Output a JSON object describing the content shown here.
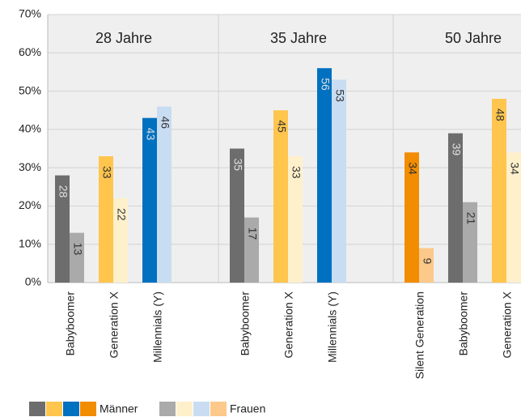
{
  "chart_data": {
    "type": "bar",
    "groups": [
      {
        "name": "28 Jahre",
        "categories": [
          "Babyboomer",
          "Generation X",
          "Millennials (Y)"
        ]
      },
      {
        "name": "35 Jahre",
        "categories": [
          "Babyboomer",
          "Generation X",
          "Millennials (Y)"
        ]
      },
      {
        "name": "50 Jahre",
        "categories": [
          "Silent Generation",
          "Babyboomer",
          "Generation X"
        ]
      }
    ],
    "series": [
      {
        "name": "Männer",
        "colors": [
          "#6d6d6d",
          "#ffc54d",
          "#0070c0",
          "#6d6d6d",
          "#ffc54d",
          "#0070c0",
          "#f28c00",
          "#6d6d6d",
          "#ffc54d"
        ],
        "legend_colors": [
          "#6d6d6d",
          "#ffc54d",
          "#0070c0",
          "#f28c00"
        ],
        "values": [
          28,
          33,
          43,
          35,
          45,
          56,
          34,
          39,
          48
        ]
      },
      {
        "name": "Frauen",
        "colors": [
          "#aaaaaa",
          "#fff0cc",
          "#c9ddf2",
          "#aaaaaa",
          "#fff0cc",
          "#c9ddf2",
          "#fcc98a",
          "#aaaaaa",
          "#fff0cc"
        ],
        "legend_colors": [
          "#aaaaaa",
          "#fff0cc",
          "#c9ddf2",
          "#fcc98a"
        ],
        "values": [
          13,
          22,
          46,
          17,
          33,
          53,
          9,
          21,
          34
        ]
      }
    ],
    "ylim": [
      0,
      70
    ],
    "yticks": [
      {
        "value": 0,
        "label": "0%"
      },
      {
        "value": 10,
        "label": "10%"
      },
      {
        "value": 20,
        "label": "20%"
      },
      {
        "value": 30,
        "label": "30%"
      },
      {
        "value": 40,
        "label": "40%"
      },
      {
        "value": 50,
        "label": "50%"
      },
      {
        "value": 60,
        "label": "60%"
      },
      {
        "value": 70,
        "label": "70%"
      }
    ],
    "grid": true
  }
}
